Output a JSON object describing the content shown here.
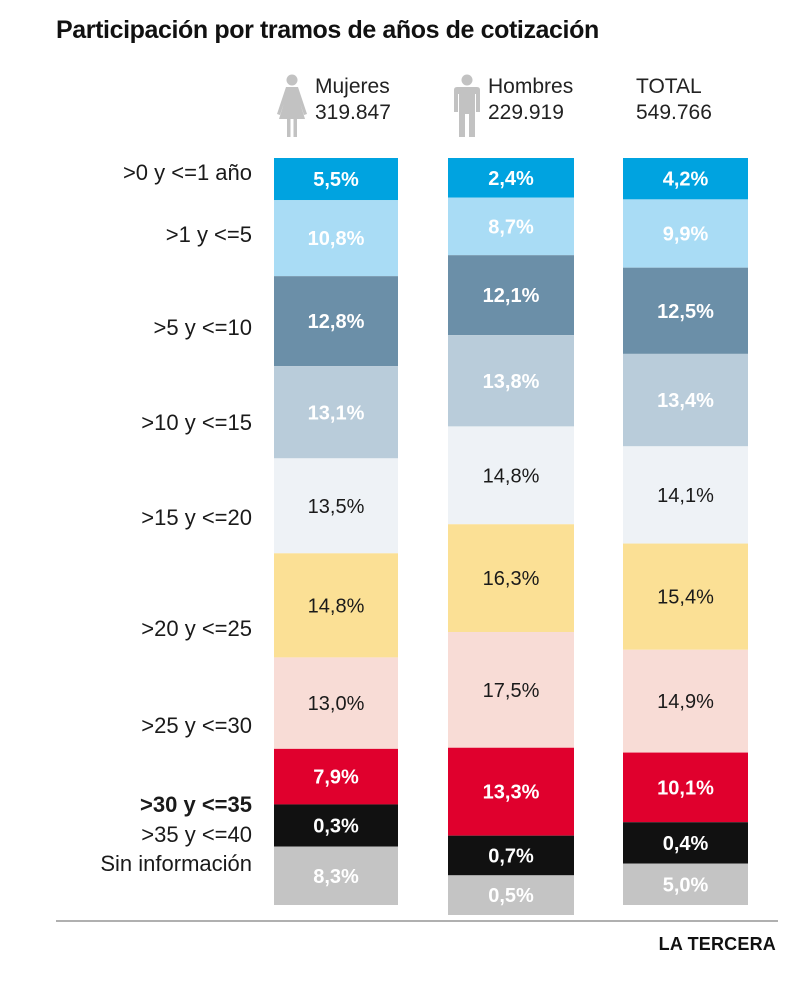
{
  "title": "Participación por tramos de años de cotización",
  "source": "LA TERCERA",
  "headers": [
    {
      "name": "Mujeres",
      "count": "319.847",
      "icon": "woman-icon"
    },
    {
      "name": "Hombres",
      "count": "229.919",
      "icon": "man-icon"
    },
    {
      "name": "TOTAL",
      "count": "549.766",
      "icon": ""
    }
  ],
  "colors": {
    "c0": "#00a3e0",
    "c1": "#a9dcf5",
    "c2": "#6b8fa8",
    "c3": "#b9ccda",
    "c4": "#eef2f6",
    "c5": "#fbe095",
    "c6": "#f8dcd6",
    "c7": "#e0002d",
    "c8": "#111111",
    "c9": "#c4c4c4"
  },
  "chart_data": {
    "type": "bar",
    "stacked": true,
    "orientation": "vertical",
    "unit": "%",
    "categories": [
      ">0 y <=1 año",
      ">1 y <=5",
      ">5 y <=10",
      ">10 y <=15",
      ">15 y <=20",
      ">20 y <=25",
      ">25 y <=30",
      ">30 y <=35",
      ">35 y <=40",
      "Sin información"
    ],
    "series": [
      {
        "name": "Mujeres",
        "values": [
          5.5,
          10.8,
          12.8,
          13.1,
          13.5,
          14.8,
          13.0,
          7.9,
          0.3,
          8.3
        ],
        "labels": [
          "5,5%",
          "10,8%",
          "12,8%",
          "13,1%",
          "13,5%",
          "14,8%",
          "13,0%",
          "7,9%",
          "0,3%",
          "8,3%"
        ]
      },
      {
        "name": "Hombres",
        "values": [
          2.4,
          8.7,
          12.1,
          13.8,
          14.8,
          16.3,
          17.5,
          13.3,
          0.7,
          0.5
        ],
        "labels": [
          "2,4%",
          "8,7%",
          "12,1%",
          "13,8%",
          "14,8%",
          "16,3%",
          "17,5%",
          "13,3%",
          "0,7%",
          "0,5%"
        ]
      },
      {
        "name": "TOTAL",
        "values": [
          4.2,
          9.9,
          12.5,
          13.4,
          14.1,
          15.4,
          14.9,
          10.1,
          0.4,
          5.0
        ],
        "labels": [
          "4,2%",
          "9,9%",
          "12,5%",
          "13,4%",
          "14,1%",
          "15,4%",
          "14,9%",
          "10,1%",
          "0,4%",
          "5,0%"
        ]
      }
    ],
    "grid": false,
    "legend": "left"
  }
}
